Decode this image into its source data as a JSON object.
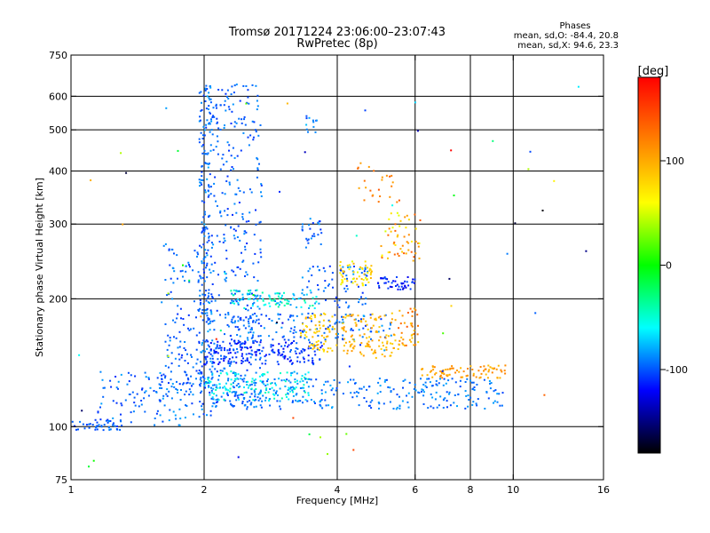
{
  "chart_data": {
    "type": "scatter",
    "title": "Tromsø 20171224 23:06:00–23:07:43",
    "subtitle": "RwPretec (8p)",
    "xlabel": "Frequency [MHz]",
    "ylabel": "Stationary phase Virtual Height [km]",
    "x_scale": "log",
    "y_scale": "log",
    "xlim": [
      1,
      16
    ],
    "ylim": [
      75,
      750
    ],
    "x_ticks": [
      1,
      2,
      4,
      6,
      8,
      10,
      16
    ],
    "y_ticks": [
      75,
      100,
      200,
      300,
      400,
      500,
      600,
      750
    ],
    "x_grid": [
      2,
      4,
      6,
      8,
      10
    ],
    "y_grid": [
      100,
      200,
      300,
      400,
      500,
      600
    ],
    "grid": true,
    "stats": {
      "header": "Phases",
      "line_o": "mean, sd,O:  -84.4, 20.8",
      "line_x": "mean, sd,X:  94.6, 23.3"
    },
    "colorbar": {
      "label": "[deg]",
      "range": [
        -180,
        180
      ],
      "ticks": [
        100,
        0,
        -100
      ],
      "colors": [
        "#ff0000",
        "#ff8000",
        "#ffff00",
        "#00ff00",
        "#00ffff",
        "#0000ff",
        "#000000"
      ]
    },
    "clusters": [
      {
        "f": [
          1.0,
          1.3
        ],
        "h": [
          98,
          104
        ],
        "n": 45,
        "phase": [
          -110,
          -90
        ]
      },
      {
        "f": [
          1.15,
          1.9
        ],
        "h": [
          100,
          135
        ],
        "n": 110,
        "phase": [
          -110,
          -80
        ]
      },
      {
        "f": [
          1.6,
          2.05
        ],
        "h": [
          120,
          270
        ],
        "n": 150,
        "phase": [
          -110,
          -85
        ]
      },
      {
        "f": [
          1.95,
          2.1
        ],
        "h": [
          105,
          640
        ],
        "n": 230,
        "phase": [
          -110,
          -80
        ]
      },
      {
        "f": [
          2.05,
          2.7
        ],
        "h": [
          110,
          210
        ],
        "n": 180,
        "phase": [
          -110,
          -85
        ]
      },
      {
        "f": [
          2.1,
          2.7
        ],
        "h": [
          220,
          640
        ],
        "n": 190,
        "phase": [
          -110,
          -85
        ]
      },
      {
        "f": [
          2.3,
          3.6
        ],
        "h": [
          190,
          210
        ],
        "n": 90,
        "phase": [
          -90,
          -30
        ]
      },
      {
        "f": [
          2.0,
          3.7
        ],
        "h": [
          140,
          160
        ],
        "n": 180,
        "phase": [
          -125,
          -95
        ]
      },
      {
        "f": [
          2.0,
          3.5
        ],
        "h": [
          115,
          135
        ],
        "n": 170,
        "phase": [
          -90,
          -40
        ]
      },
      {
        "f": [
          2.3,
          5.3
        ],
        "h": [
          160,
          185
        ],
        "n": 130,
        "phase": [
          -110,
          -80
        ]
      },
      {
        "f": [
          2.3,
          9.5
        ],
        "h": [
          110,
          130
        ],
        "n": 260,
        "phase": [
          -105,
          -80
        ]
      },
      {
        "f": [
          3.3,
          3.7
        ],
        "h": [
          260,
          310
        ],
        "n": 25,
        "phase": [
          -110,
          -80
        ]
      },
      {
        "f": [
          3.3,
          4.7
        ],
        "h": [
          190,
          240
        ],
        "n": 70,
        "phase": [
          -110,
          -80
        ]
      },
      {
        "f": [
          3.3,
          4.0
        ],
        "h": [
          150,
          185
        ],
        "n": 70,
        "phase": [
          70,
          100
        ]
      },
      {
        "f": [
          4.1,
          5.5
        ],
        "h": [
          145,
          185
        ],
        "n": 110,
        "phase": [
          80,
          110
        ]
      },
      {
        "f": [
          4.0,
          4.8
        ],
        "h": [
          215,
          245
        ],
        "n": 55,
        "phase": [
          50,
          100
        ]
      },
      {
        "f": [
          4.9,
          6.0
        ],
        "h": [
          210,
          225
        ],
        "n": 45,
        "phase": [
          -130,
          -100
        ]
      },
      {
        "f": [
          5.0,
          6.2
        ],
        "h": [
          245,
          320
        ],
        "n": 55,
        "phase": [
          50,
          140
        ]
      },
      {
        "f": [
          4.4,
          5.6
        ],
        "h": [
          330,
          420
        ],
        "n": 25,
        "phase": [
          100,
          150
        ]
      },
      {
        "f": [
          5.5,
          6.1
        ],
        "h": [
          155,
          190
        ],
        "n": 40,
        "phase": [
          80,
          140
        ]
      },
      {
        "f": [
          6.2,
          9.6
        ],
        "h": [
          130,
          140
        ],
        "n": 80,
        "phase": [
          90,
          120
        ]
      },
      {
        "f": [
          3.4,
          3.6
        ],
        "h": [
          490,
          540
        ],
        "n": 12,
        "phase": [
          -110,
          -60
        ]
      },
      {
        "f": [
          1.0,
          16.0
        ],
        "h": [
          80,
          650
        ],
        "n": 60,
        "phase": [
          -180,
          180
        ]
      }
    ]
  }
}
